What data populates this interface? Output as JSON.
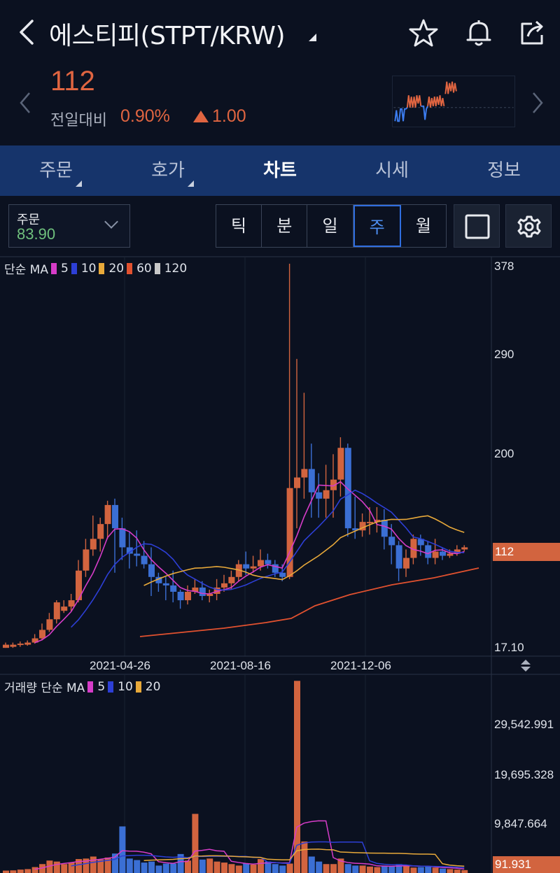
{
  "header": {
    "title": "에스티피(STPT/KRW)",
    "back_icon": "chevron-left-icon",
    "actions": [
      "star-icon",
      "bell-icon",
      "share-icon"
    ]
  },
  "ticker": {
    "price": "112",
    "change_label": "전일대비",
    "change_pct": "0.90%",
    "change_abs": "1.00",
    "up_color": "#e06541"
  },
  "tabs": [
    {
      "label": "주문",
      "has_menu": true
    },
    {
      "label": "호가",
      "has_menu": true
    },
    {
      "label": "차트",
      "active": true
    },
    {
      "label": "시세"
    },
    {
      "label": "정보"
    }
  ],
  "toolbar": {
    "order_label": "주문",
    "order_value": "83.90",
    "periods": [
      "틱",
      "분",
      "일",
      "주",
      "월"
    ],
    "active_period": "주"
  },
  "price_chart": {
    "legend_prefix": "단순 MA",
    "ma": [
      {
        "period": "5",
        "color": "#d63cc8"
      },
      {
        "period": "10",
        "color": "#2d3fd6"
      },
      {
        "period": "20",
        "color": "#e8a93a"
      },
      {
        "period": "60",
        "color": "#e1512f"
      },
      {
        "period": "120",
        "color": "#c8c8c8"
      }
    ],
    "y_ticks": [
      "378",
      "290",
      "200",
      "17.10"
    ],
    "current_price_label": "112",
    "dates": [
      "2021-04-26",
      "2021-08-16",
      "2021-12-06"
    ]
  },
  "volume_chart": {
    "legend_prefix": "거래량 단순 MA",
    "ma": [
      {
        "period": "5",
        "color": "#d63cc8"
      },
      {
        "period": "10",
        "color": "#2d3fd6"
      },
      {
        "period": "20",
        "color": "#e8a93a"
      }
    ],
    "y_ticks": [
      "29,542.991",
      "19,695.328",
      "9,847.664"
    ],
    "current_volume_label": "91.931"
  }
}
